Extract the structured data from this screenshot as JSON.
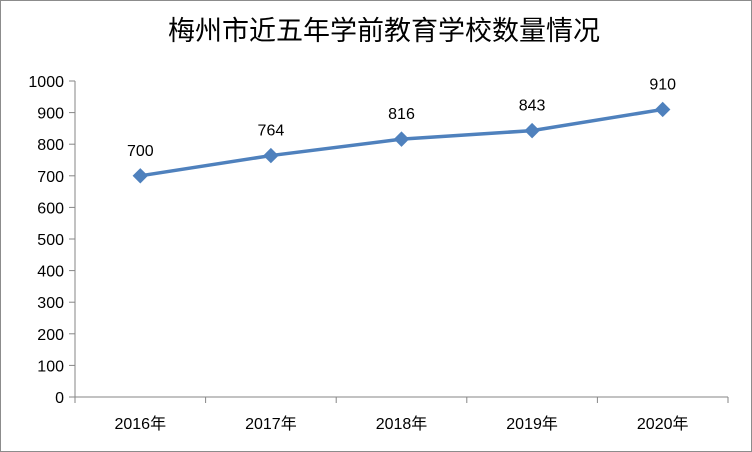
{
  "chart_data": {
    "type": "line",
    "title": "梅州市近五年学前教育学校数量情况",
    "categories": [
      "2016年",
      "2017年",
      "2018年",
      "2019年",
      "2020年"
    ],
    "values": [
      700,
      764,
      816,
      843,
      910
    ],
    "data_labels": [
      "700",
      "764",
      "816",
      "843",
      "910"
    ],
    "ylim": [
      0,
      1000
    ],
    "yticks": [
      "0",
      "100",
      "200",
      "300",
      "400",
      "500",
      "600",
      "700",
      "800",
      "900",
      "1000"
    ],
    "grid": false,
    "legend": "none",
    "marker": "diamond",
    "line_color": "#4f81bd",
    "marker_color": "#4f81bd"
  }
}
